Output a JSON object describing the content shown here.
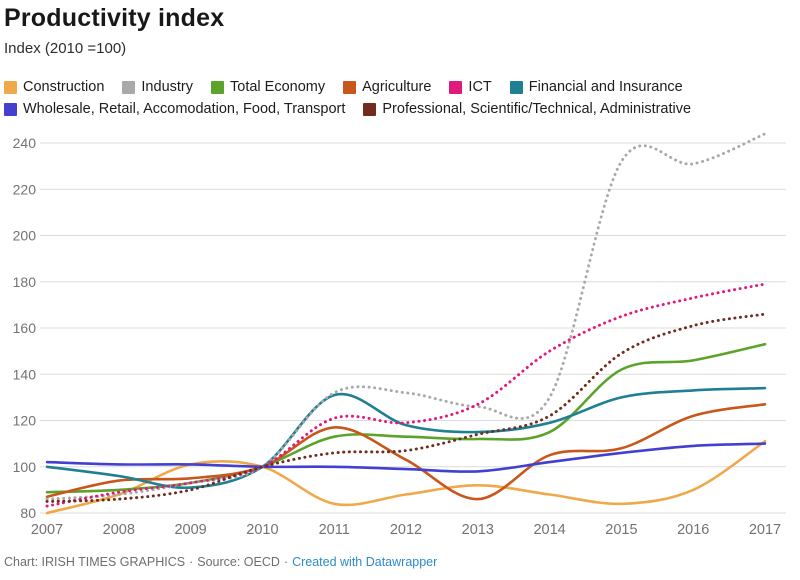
{
  "header": {
    "title": "Productivity index",
    "subtitle": "Index (2010 =100)"
  },
  "footer": {
    "credit": "Chart: IRISH TIMES GRAPHICS",
    "separator": "·",
    "source": "Source: OECD",
    "link_label": "Created with Datawrapper",
    "link_color": "#2e8bc9"
  },
  "chart_data": {
    "type": "line",
    "title": "Productivity index",
    "subtitle": "Index (2010 =100)",
    "xlabel": "",
    "ylabel": "",
    "categories": [
      2007,
      2008,
      2009,
      2010,
      2011,
      2012,
      2013,
      2014,
      2015,
      2016,
      2017
    ],
    "yticks": [
      80,
      100,
      120,
      140,
      160,
      180,
      200,
      220,
      240
    ],
    "ylim": [
      80,
      248
    ],
    "grid": "horizontal",
    "gridline_color": "#dcdcdc",
    "axis_text_color": "#737373",
    "legend_position": "top",
    "series": [
      {
        "name": "Construction",
        "color": "#EFA94A",
        "line_style": "solid",
        "values": [
          80,
          88,
          101,
          100,
          84,
          88,
          92,
          88,
          84,
          90,
          111
        ]
      },
      {
        "name": "Industry",
        "color": "#A9A9A9",
        "line_style": "dotted",
        "values": [
          86,
          88,
          93,
          100,
          132,
          132,
          126,
          130,
          232,
          231,
          244
        ]
      },
      {
        "name": "Total Economy",
        "color": "#5CA32A",
        "line_style": "solid",
        "values": [
          89,
          90,
          93,
          100,
          113,
          113,
          112,
          115,
          142,
          146,
          153
        ]
      },
      {
        "name": "Agriculture",
        "color": "#C9571C",
        "line_style": "solid",
        "values": [
          87,
          94,
          95,
          100,
          117,
          103,
          86,
          105,
          108,
          122,
          127
        ]
      },
      {
        "name": "ICT",
        "color": "#E0197D",
        "line_style": "dotted",
        "values": [
          83,
          89,
          93,
          100,
          121,
          119,
          127,
          150,
          165,
          173,
          179
        ]
      },
      {
        "name": "Financial and Insurance",
        "color": "#1F7F93",
        "line_style": "solid",
        "values": [
          100,
          96,
          91,
          100,
          131,
          118,
          115,
          119,
          130,
          133,
          134
        ]
      },
      {
        "name": "Wholesale, Retail, Accomodation, Food, Transport",
        "color": "#4340CF",
        "line_style": "solid",
        "values": [
          102,
          101,
          101,
          100,
          100,
          99,
          98,
          102,
          106,
          109,
          110
        ]
      },
      {
        "name": "Professional, Scientific/Technical, Administrative",
        "color": "#722B1F",
        "line_style": "dotted",
        "values": [
          85,
          86,
          90,
          100,
          106,
          107,
          114,
          122,
          149,
          161,
          166
        ]
      }
    ]
  }
}
